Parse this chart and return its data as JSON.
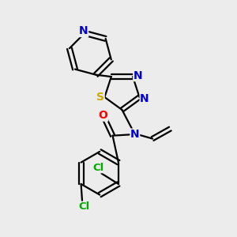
{
  "bg_color": "#ececec",
  "atom_colors": {
    "N": "#0000cc",
    "O": "#ff0000",
    "S": "#ccaa00",
    "Cl": "#00aa00",
    "bond": "#000000"
  },
  "figsize": [
    3.0,
    3.0
  ],
  "dpi": 100
}
